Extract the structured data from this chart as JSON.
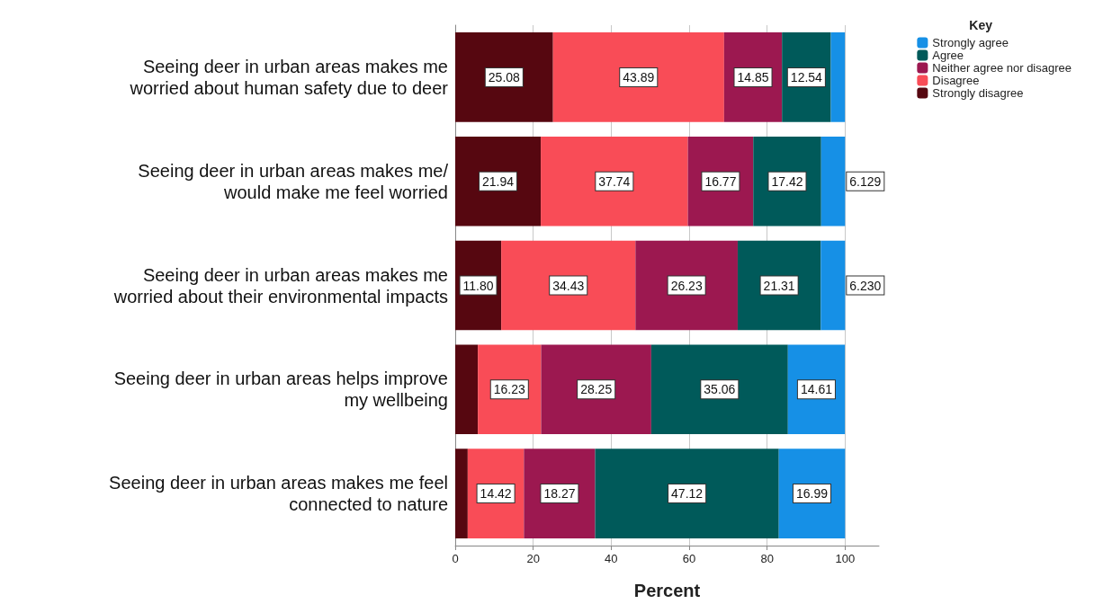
{
  "chart_data": {
    "type": "bar",
    "orientation": "horizontal",
    "stacked": true,
    "xlabel": "Percent",
    "legend_title": "Key",
    "legend": "top right",
    "grid": "x",
    "categories": [
      "Seeing deer in urban areas makes me\nworried about human safety due to deer",
      "Seeing deer in urban areas makes me/\nwould make me feel worried",
      "Seeing deer in urban areas makes me\nworried about their environmental impacts",
      "Seeing deer in urban areas helps improve\nmy wellbeing",
      "Seeing deer in urban areas makes me feel\nconnected to nature"
    ],
    "xlim": [
      0,
      108.7
    ],
    "xticks": [
      0,
      20,
      40,
      60,
      80,
      100
    ],
    "series": [
      {
        "name": "Strongly disagree",
        "color": "#560710",
        "values": [
          25.08,
          21.94,
          11.8,
          5.8,
          3.2
        ],
        "value_labels": [
          "25.08",
          "21.94",
          "11.80",
          null,
          null
        ]
      },
      {
        "name": "Disagree",
        "color": "#f94c57",
        "values": [
          43.89,
          37.74,
          34.43,
          16.23,
          14.42
        ],
        "value_labels": [
          "43.89",
          "37.74",
          "34.43",
          "16.23",
          "14.42"
        ]
      },
      {
        "name": "Neither agree nor disagree",
        "color": "#9c1850",
        "values": [
          14.85,
          16.77,
          26.23,
          28.25,
          18.27
        ],
        "value_labels": [
          "14.85",
          "16.77",
          "26.23",
          "28.25",
          "18.27"
        ]
      },
      {
        "name": "Agree",
        "color": "#005a5a",
        "values": [
          12.54,
          17.42,
          21.31,
          35.06,
          47.12
        ],
        "value_labels": [
          "12.54",
          "17.42",
          "21.31",
          "35.06",
          "47.12"
        ]
      },
      {
        "name": "Strongly agree",
        "color": "#1690e6",
        "values": [
          3.6,
          6.129,
          6.23,
          14.61,
          16.99
        ],
        "value_labels": [
          null,
          "6.129",
          "6.230",
          "14.61",
          "16.99"
        ]
      }
    ]
  }
}
